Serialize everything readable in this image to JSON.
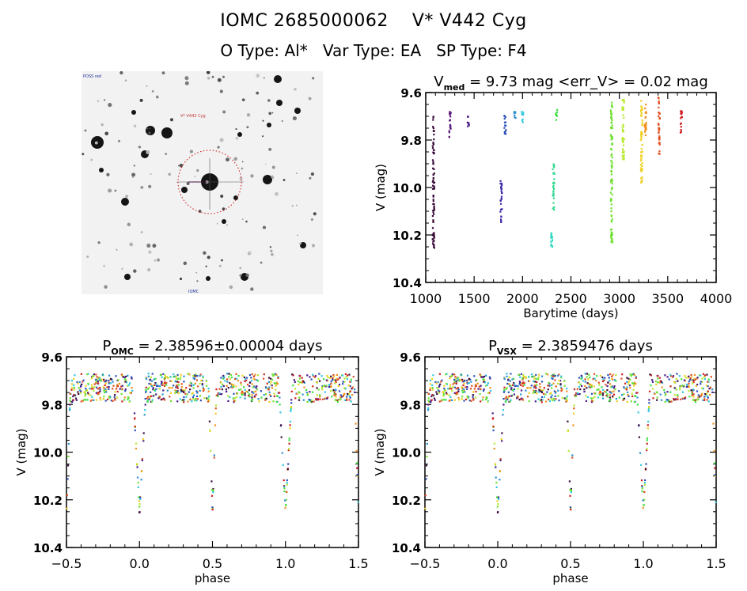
{
  "header": {
    "title_line1": "IOMC 2685000062    V* V442 Cyg",
    "title_line2": "O Type: Al*   Var Type: EA   SP Type: F4"
  },
  "sky_image": {
    "description": "Finding chart, inverted grayscale star field with red dotted circle around target",
    "label_top_left": "",
    "label_target": "",
    "label_bottom": "",
    "circle_color": "#d01010"
  },
  "chart_data": [
    {
      "type": "scatter",
      "id": "lightcurve",
      "title": "V_med = 9.73 mag <err_V> = 0.02 mag",
      "title_parts": {
        "main": "V",
        "sub": "med",
        "rest": " = 9.73 mag <err_V> = 0.02 mag"
      },
      "xlabel": "Barytime (days)",
      "ylabel": "V (mag)",
      "xlim": [
        1000,
        4000
      ],
      "ylim": [
        10.4,
        9.6
      ],
      "y_inverted": true,
      "xticks": [
        "1000",
        "1500",
        "2000",
        "2500",
        "3000",
        "3500",
        "4000"
      ],
      "xtick_values": [
        1000,
        1500,
        2000,
        2500,
        3000,
        3500,
        4000
      ],
      "yticks": [
        "9.6",
        "9.8",
        "10.0",
        "10.2",
        "10.4"
      ],
      "ytick_values": [
        9.6,
        9.8,
        10.0,
        10.2,
        10.4
      ],
      "series": [
        {
          "name": "seg1",
          "color": "#3a0a3a",
          "x": 1080,
          "ymin": 9.7,
          "ymax": 10.26
        },
        {
          "name": "seg2",
          "color": "#5a1a7a",
          "x": 1250,
          "ymin": 9.68,
          "ymax": 9.8
        },
        {
          "name": "seg3",
          "color": "#4a1a8a",
          "x": 1440,
          "ymin": 9.7,
          "ymax": 9.75
        },
        {
          "name": "seg4",
          "color": "#3a2aa8",
          "x": 1780,
          "ymin": 9.97,
          "ymax": 10.15
        },
        {
          "name": "seg5",
          "color": "#2a50b8",
          "x": 1820,
          "ymin": 9.68,
          "ymax": 9.78
        },
        {
          "name": "seg6",
          "color": "#2a90d0",
          "x": 1920,
          "ymin": 9.68,
          "ymax": 9.72
        },
        {
          "name": "seg7",
          "color": "#30c8e0",
          "x": 2000,
          "ymin": 9.68,
          "ymax": 9.73
        },
        {
          "name": "seg8",
          "color": "#30d8c0",
          "x": 2300,
          "ymin": 10.15,
          "ymax": 10.25
        },
        {
          "name": "seg9",
          "color": "#30d890",
          "x": 2320,
          "ymin": 9.9,
          "ymax": 10.1
        },
        {
          "name": "seg10",
          "color": "#40e040",
          "x": 2350,
          "ymin": 9.66,
          "ymax": 9.72
        },
        {
          "name": "seg11",
          "color": "#70e030",
          "x": 2920,
          "ymin": 9.64,
          "ymax": 10.25
        },
        {
          "name": "seg12",
          "color": "#b8e830",
          "x": 3040,
          "ymin": 9.62,
          "ymax": 9.9
        },
        {
          "name": "seg13",
          "color": "#f0d020",
          "x": 3230,
          "ymin": 9.63,
          "ymax": 9.98
        },
        {
          "name": "seg14",
          "color": "#f09020",
          "x": 3270,
          "ymin": 9.63,
          "ymax": 9.78
        },
        {
          "name": "seg15",
          "color": "#e05020",
          "x": 3410,
          "ymin": 9.62,
          "ymax": 9.86
        },
        {
          "name": "seg16",
          "color": "#d02020",
          "x": 3640,
          "ymin": 9.66,
          "ymax": 9.77
        }
      ]
    },
    {
      "type": "scatter",
      "id": "phase_omc",
      "title": "P_OMC = 2.38596±0.00004 days",
      "title_parts": {
        "main": "P",
        "sub": "OMC",
        "rest": " = 2.38596±0.00004 days"
      },
      "xlabel": "phase",
      "ylabel": "V (mag)",
      "xlim": [
        -0.5,
        1.5
      ],
      "ylim": [
        10.4,
        9.6
      ],
      "y_inverted": true,
      "xticks": [
        "-0.5",
        "0.0",
        "0.5",
        "1.0",
        "1.5"
      ],
      "xtick_values": [
        -0.5,
        0.0,
        0.5,
        1.0,
        1.5
      ],
      "yticks": [
        "9.6",
        "9.8",
        "10.0",
        "10.2",
        "10.4"
      ],
      "ytick_values": [
        9.6,
        9.8,
        10.0,
        10.2,
        10.4
      ],
      "primary_eclipse": {
        "phase": 0.0,
        "depth_mag": 10.25,
        "baseline_mag": 9.73
      },
      "secondary_eclipse": {
        "phase": 0.5,
        "depth_mag": 10.25
      }
    },
    {
      "type": "scatter",
      "id": "phase_vsx",
      "title": "P_VSX = 2.3859476 days",
      "title_parts": {
        "main": "P",
        "sub": "VSX",
        "rest": " = 2.3859476 days"
      },
      "xlabel": "phase",
      "ylabel": "V (mag)",
      "xlim": [
        -0.5,
        1.5
      ],
      "ylim": [
        10.4,
        9.6
      ],
      "y_inverted": true,
      "xticks": [
        "-0.5",
        "0.0",
        "0.5",
        "1.0",
        "1.5"
      ],
      "xtick_values": [
        -0.5,
        0.0,
        0.5,
        1.0,
        1.5
      ],
      "yticks": [
        "9.6",
        "9.8",
        "10.0",
        "10.2",
        "10.4"
      ],
      "ytick_values": [
        9.6,
        9.8,
        10.0,
        10.2,
        10.4
      ],
      "primary_eclipse": {
        "phase": 0.0,
        "depth_mag": 10.25,
        "baseline_mag": 9.73
      },
      "secondary_eclipse": {
        "phase": 0.5,
        "depth_mag": 10.25
      }
    }
  ]
}
